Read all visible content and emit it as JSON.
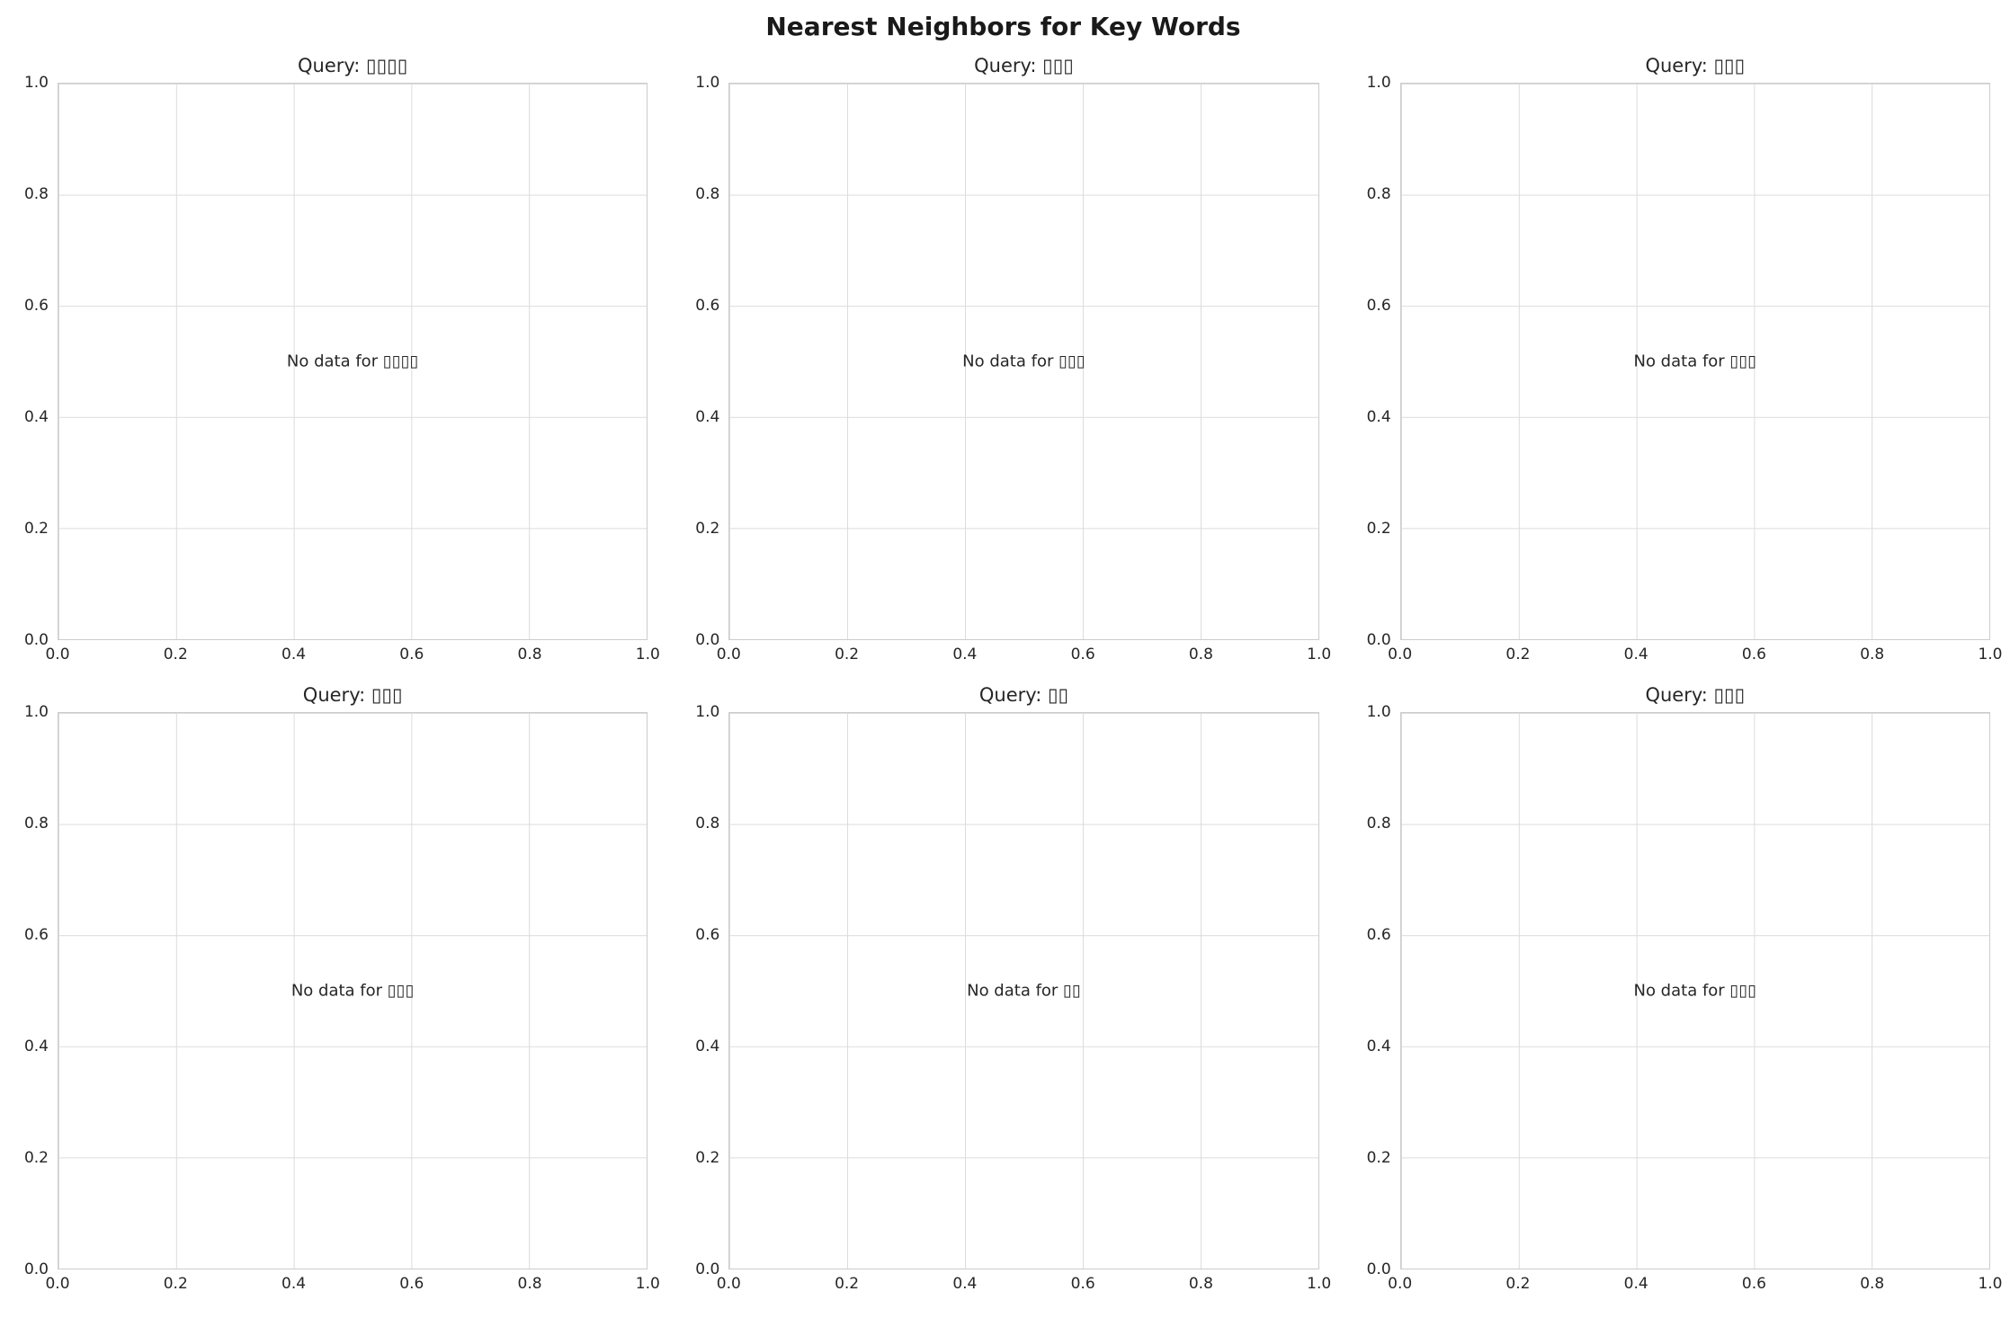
{
  "figure": {
    "title": "Nearest Neighbors for Key Words"
  },
  "ticks": [
    "0.0",
    "0.2",
    "0.4",
    "0.6",
    "0.8",
    "1.0"
  ],
  "subplots": [
    {
      "title": "Query: ▯▯▯▯",
      "no_data": "No data for ▯▯▯▯"
    },
    {
      "title": "Query: ▯▯▯",
      "no_data": "No data for ▯▯▯"
    },
    {
      "title": "Query: ▯▯▯",
      "no_data": "No data for ▯▯▯"
    },
    {
      "title": "Query: ▯▯▯",
      "no_data": "No data for ▯▯▯"
    },
    {
      "title": "Query: ▯▯",
      "no_data": "No data for ▯▯"
    },
    {
      "title": "Query: ▯▯▯",
      "no_data": "No data for ▯▯▯"
    }
  ],
  "colors": {
    "grid_line": "#dcdcdc",
    "spine": "#cccccc",
    "text": "#262626",
    "figure_title": "#1a1a1a",
    "background": "#ffffff"
  },
  "chart_data": [
    {
      "type": "scatter",
      "title": "Query: ▯▯▯▯",
      "x": [],
      "y": [],
      "xlim": [
        0.0,
        1.0
      ],
      "ylim": [
        0.0,
        1.0
      ],
      "xticks": [
        0.0,
        0.2,
        0.4,
        0.6,
        0.8,
        1.0
      ],
      "yticks": [
        0.0,
        0.2,
        0.4,
        0.6,
        0.8,
        1.0
      ],
      "grid": true,
      "legend": "none",
      "annotation": "No data for ▯▯▯▯"
    },
    {
      "type": "scatter",
      "title": "Query: ▯▯▯",
      "x": [],
      "y": [],
      "xlim": [
        0.0,
        1.0
      ],
      "ylim": [
        0.0,
        1.0
      ],
      "xticks": [
        0.0,
        0.2,
        0.4,
        0.6,
        0.8,
        1.0
      ],
      "yticks": [
        0.0,
        0.2,
        0.4,
        0.6,
        0.8,
        1.0
      ],
      "grid": true,
      "legend": "none",
      "annotation": "No data for ▯▯▯"
    },
    {
      "type": "scatter",
      "title": "Query: ▯▯▯",
      "x": [],
      "y": [],
      "xlim": [
        0.0,
        1.0
      ],
      "ylim": [
        0.0,
        1.0
      ],
      "xticks": [
        0.0,
        0.2,
        0.4,
        0.6,
        0.8,
        1.0
      ],
      "yticks": [
        0.0,
        0.2,
        0.4,
        0.6,
        0.8,
        1.0
      ],
      "grid": true,
      "legend": "none",
      "annotation": "No data for ▯▯▯"
    },
    {
      "type": "scatter",
      "title": "Query: ▯▯▯",
      "x": [],
      "y": [],
      "xlim": [
        0.0,
        1.0
      ],
      "ylim": [
        0.0,
        1.0
      ],
      "xticks": [
        0.0,
        0.2,
        0.4,
        0.6,
        0.8,
        1.0
      ],
      "yticks": [
        0.0,
        0.2,
        0.4,
        0.6,
        0.8,
        1.0
      ],
      "grid": true,
      "legend": "none",
      "annotation": "No data for ▯▯▯"
    },
    {
      "type": "scatter",
      "title": "Query: ▯▯",
      "x": [],
      "y": [],
      "xlim": [
        0.0,
        1.0
      ],
      "ylim": [
        0.0,
        1.0
      ],
      "xticks": [
        0.0,
        0.2,
        0.4,
        0.6,
        0.8,
        1.0
      ],
      "yticks": [
        0.0,
        0.2,
        0.4,
        0.6,
        0.8,
        1.0
      ],
      "grid": true,
      "legend": "none",
      "annotation": "No data for ▯▯"
    },
    {
      "type": "scatter",
      "title": "Query: ▯▯▯",
      "x": [],
      "y": [],
      "xlim": [
        0.0,
        1.0
      ],
      "ylim": [
        0.0,
        1.0
      ],
      "xticks": [
        0.0,
        0.2,
        0.4,
        0.6,
        0.8,
        1.0
      ],
      "yticks": [
        0.0,
        0.2,
        0.4,
        0.6,
        0.8,
        1.0
      ],
      "grid": true,
      "legend": "none",
      "annotation": "No data for ▯▯▯"
    }
  ],
  "figure_title": "Nearest Neighbors for Key Words"
}
